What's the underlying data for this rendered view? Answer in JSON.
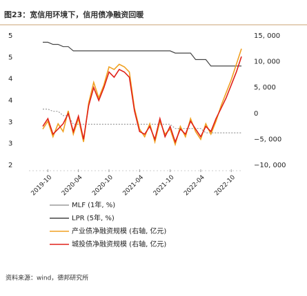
{
  "chart_data": {
    "type": "line",
    "title": "图23：宽信用环境下，信用债净融资回暖",
    "source": "资料来源：wind，德邦研究所",
    "x": [
      0,
      1,
      2,
      3,
      4,
      5,
      6,
      7,
      8,
      9,
      10,
      11,
      12,
      13,
      14,
      15,
      16,
      17,
      18,
      19,
      20,
      21,
      22,
      23,
      24,
      25,
      26,
      27,
      28,
      29,
      30,
      31,
      32,
      33,
      34,
      35,
      36,
      37,
      38,
      39
    ],
    "xlim": [
      0,
      39
    ],
    "xticks": [
      {
        "value": 1,
        "label": "2019-10"
      },
      {
        "value": 7,
        "label": "2020-04"
      },
      {
        "value": 13,
        "label": "2020-10"
      },
      {
        "value": 19,
        "label": "2021-04"
      },
      {
        "value": 25,
        "label": "2021-10"
      },
      {
        "value": 31,
        "label": "2022-04"
      },
      {
        "value": 37,
        "label": "2022-10"
      }
    ],
    "ylim": [
      2.0,
      5.0
    ],
    "yticks": [
      {
        "value": 5.0,
        "label": "5"
      },
      {
        "value": 4.5,
        "label": "5"
      },
      {
        "value": 4.0,
        "label": "4"
      },
      {
        "value": 3.5,
        "label": "4"
      },
      {
        "value": 3.0,
        "label": "3"
      },
      {
        "value": 2.5,
        "label": "3"
      },
      {
        "value": 2.0,
        "label": "2"
      }
    ],
    "y2lim": [
      -10000,
      15000
    ],
    "y2ticks": [
      {
        "value": 15000,
        "label": "15, 000"
      },
      {
        "value": 10000,
        "label": "10, 000"
      },
      {
        "value": 5000,
        "label": "5, 000"
      },
      0,
      {
        "value": -5000,
        "label": "−5, 000"
      },
      {
        "value": -10000,
        "label": "−10, 000"
      }
    ],
    "series": [
      {
        "name": "MLF (1年, %)",
        "color": "#9a9a9a",
        "values": [
          3.3,
          3.3,
          3.25,
          3.25,
          3.15,
          3.15,
          2.95,
          2.95,
          2.95,
          2.95,
          2.95,
          2.95,
          2.95,
          2.95,
          2.95,
          2.95,
          2.95,
          2.95,
          2.95,
          2.95,
          2.95,
          2.95,
          2.95,
          2.95,
          2.95,
          2.95,
          2.85,
          2.85,
          2.85,
          2.85,
          2.85,
          2.85,
          2.75,
          2.75,
          2.75,
          2.75,
          2.75,
          2.75,
          2.75,
          2.75
        ]
      },
      {
        "name": "LPR (5年, %)",
        "color": "#444444",
        "values": [
          4.85,
          4.85,
          4.8,
          4.8,
          4.75,
          4.75,
          4.65,
          4.65,
          4.65,
          4.65,
          4.65,
          4.65,
          4.65,
          4.65,
          4.65,
          4.65,
          4.65,
          4.65,
          4.65,
          4.65,
          4.65,
          4.65,
          4.65,
          4.65,
          4.65,
          4.65,
          4.6,
          4.6,
          4.6,
          4.6,
          4.45,
          4.45,
          4.45,
          4.3,
          4.3,
          4.3,
          4.3,
          4.3,
          4.3,
          4.3
        ]
      },
      {
        "name": "产业债净融资规模 (右轴, 亿元)",
        "color": "#f0a020",
        "axis": "y2",
        "values": [
          -3000,
          -1500,
          -4500,
          -2000,
          -3500,
          500,
          -4000,
          -1000,
          -5500,
          2000,
          6000,
          3000,
          5500,
          9000,
          8500,
          9500,
          9000,
          8000,
          1000,
          -3000,
          -4500,
          -2000,
          -5500,
          -1500,
          -4000,
          -3000,
          -6000,
          -2500,
          -4500,
          -1000,
          -3500,
          -5000,
          -2000,
          -4000,
          -1500,
          1500,
          4000,
          6500,
          9500,
          12500
        ]
      },
      {
        "name": "城投债净融资规模 (右轴, 亿元)",
        "color": "#e02018",
        "axis": "y2",
        "values": [
          -2500,
          -1000,
          -4000,
          -3000,
          -2000,
          0,
          -3500,
          -500,
          -5000,
          1500,
          5000,
          2500,
          5000,
          8000,
          7000,
          8500,
          8000,
          7000,
          500,
          -3500,
          -4000,
          -2500,
          -5000,
          -1000,
          -4500,
          -2500,
          -5500,
          -3000,
          -4000,
          -1500,
          -3000,
          -4500,
          -2500,
          -3500,
          -1000,
          1000,
          3000,
          5500,
          8000,
          11000
        ]
      }
    ]
  }
}
